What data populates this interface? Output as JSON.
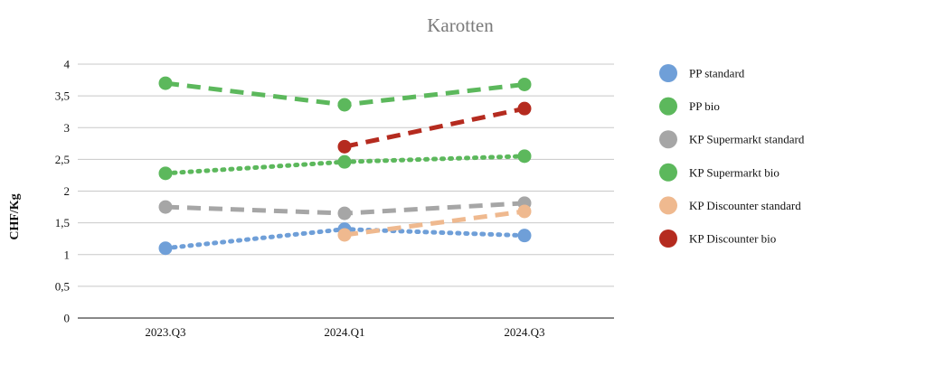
{
  "chart_data": {
    "type": "line",
    "title": "Karotten",
    "ylabel": "CHF/Kg",
    "xlabel": "",
    "categories": [
      "2023.Q3",
      "2024.Q1",
      "2024.Q3"
    ],
    "ylim": [
      0,
      4
    ],
    "yticks": [
      0,
      0.5,
      1,
      1.5,
      2,
      2.5,
      3,
      3.5,
      4
    ],
    "ytick_labels": [
      "0",
      "0,5",
      "1",
      "1,5",
      "2",
      "2,5",
      "3",
      "3,5",
      "4"
    ],
    "grid": "horizontal",
    "legend_position": "right",
    "series": [
      {
        "name": "PP standard",
        "color": "#6f9fd8",
        "dash": "dotted",
        "values": [
          1.1,
          1.4,
          1.3
        ]
      },
      {
        "name": "PP bio",
        "color": "#5cb85c",
        "dash": "dashed",
        "values": [
          3.7,
          3.36,
          3.68
        ]
      },
      {
        "name": "KP Supermarkt standard",
        "color": "#a6a6a6",
        "dash": "dashed",
        "values": [
          1.75,
          1.65,
          1.81
        ]
      },
      {
        "name": "KP Supermarkt bio",
        "color": "#5cb85c",
        "dash": "dotted",
        "values": [
          2.28,
          2.46,
          2.55
        ]
      },
      {
        "name": "KP Discounter standard",
        "color": "#efb98f",
        "dash": "dashed",
        "values": [
          null,
          1.31,
          1.68
        ]
      },
      {
        "name": "KP Discounter bio",
        "color": "#b52b1f",
        "dash": "dashed",
        "values": [
          null,
          2.7,
          3.3
        ]
      }
    ]
  }
}
